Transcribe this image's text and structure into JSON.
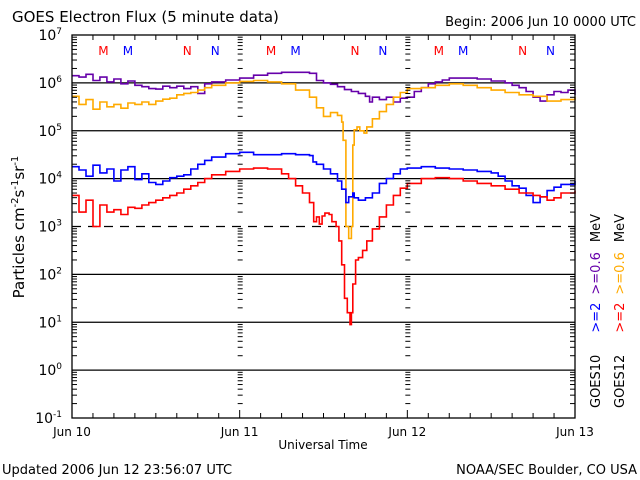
{
  "header": {
    "title": "GOES Electron Flux (5 minute data)",
    "begin": "Begin: 2006 Jun 10 0000 UTC"
  },
  "footer": {
    "updated": "Updated 2006 Jun 12 23:56:07 UTC",
    "credit": "NOAA/SEC Boulder, CO USA"
  },
  "colors": {
    "goes10_gt2": "#0000ff",
    "goes10_gt06": "#6600aa",
    "goes12_gt2": "#ff0000",
    "goes12_gt06": "#ffaa00",
    "axis": "#000000"
  },
  "chart_data": {
    "type": "line",
    "title": "GOES Electron Flux (5 minute data)",
    "xlabel": "Universal Time",
    "ylabel": "Particles cm⁻²s⁻¹sr⁻¹",
    "yscale": "log",
    "ylim": [
      0.1,
      10000000
    ],
    "xlim_hours": [
      0,
      72
    ],
    "x_ticks": [
      {
        "hour": 0,
        "label": "Jun 10"
      },
      {
        "hour": 24,
        "label": "Jun 11"
      },
      {
        "hour": 48,
        "label": "Jun 12"
      },
      {
        "hour": 72,
        "label": "Jun 13"
      }
    ],
    "y_ticks": [
      {
        "exp": 7,
        "base": "10",
        "sup": "7"
      },
      {
        "exp": 6,
        "base": "10",
        "sup": "6"
      },
      {
        "exp": 5,
        "base": "10",
        "sup": "5"
      },
      {
        "exp": 4,
        "base": "10",
        "sup": "4"
      },
      {
        "exp": 3,
        "base": "10",
        "sup": "3"
      },
      {
        "exp": 2,
        "base": "10",
        "sup": "2"
      },
      {
        "exp": 1,
        "base": "10",
        "sup": "1"
      },
      {
        "exp": 0,
        "base": "10",
        "sup": "0"
      },
      {
        "exp": -1,
        "base": "10",
        "sup": "-1"
      }
    ],
    "solid_gridlines_exp": [
      6,
      5,
      4,
      2,
      1,
      0
    ],
    "dashed_gridlines_exp": [
      3
    ],
    "day_boundaries_hours": [
      24,
      48
    ],
    "markers": [
      {
        "hour": 4.5,
        "label": "M",
        "satellite": "GOES12"
      },
      {
        "hour": 8.0,
        "label": "M",
        "satellite": "GOES10"
      },
      {
        "hour": 16.5,
        "label": "N",
        "satellite": "GOES12"
      },
      {
        "hour": 20.5,
        "label": "N",
        "satellite": "GOES10"
      },
      {
        "hour": 28.5,
        "label": "M",
        "satellite": "GOES12"
      },
      {
        "hour": 32.0,
        "label": "M",
        "satellite": "GOES10"
      },
      {
        "hour": 40.5,
        "label": "N",
        "satellite": "GOES12"
      },
      {
        "hour": 44.5,
        "label": "N",
        "satellite": "GOES10"
      },
      {
        "hour": 52.5,
        "label": "M",
        "satellite": "GOES12"
      },
      {
        "hour": 56.0,
        "label": "M",
        "satellite": "GOES10"
      },
      {
        "hour": 64.5,
        "label": "N",
        "satellite": "GOES12"
      },
      {
        "hour": 68.5,
        "label": "N",
        "satellite": "GOES10"
      }
    ],
    "legend": [
      {
        "satellite": "GOES10",
        "gt2": ">=2",
        "gt06": ">=0.6",
        "unit": "MeV"
      },
      {
        "satellite": "GOES12",
        "gt2": ">=2",
        "gt06": ">=0.6",
        "unit": "MeV"
      }
    ],
    "legend_placement": "right-vertical",
    "series": [
      {
        "name": "GOES10 >=0.6 MeV",
        "color_key": "goes10_gt06",
        "points": [
          [
            0,
            6.15
          ],
          [
            1,
            6.12
          ],
          [
            2,
            6.18
          ],
          [
            3,
            6.05
          ],
          [
            4,
            6.12
          ],
          [
            5,
            6.02
          ],
          [
            6,
            6.08
          ],
          [
            7,
            5.98
          ],
          [
            8,
            6.04
          ],
          [
            9,
            5.95
          ],
          [
            10,
            5.92
          ],
          [
            11,
            5.88
          ],
          [
            12,
            5.87
          ],
          [
            13,
            5.93
          ],
          [
            14,
            5.9
          ],
          [
            15,
            5.93
          ],
          [
            16,
            5.88
          ],
          [
            17,
            5.92
          ],
          [
            18,
            5.78
          ],
          [
            19,
            5.98
          ],
          [
            20,
            6.02
          ],
          [
            22,
            6.06
          ],
          [
            24,
            6.1
          ],
          [
            26,
            6.16
          ],
          [
            28,
            6.2
          ],
          [
            30,
            6.22
          ],
          [
            32,
            6.22
          ],
          [
            34,
            6.2
          ],
          [
            35,
            6.05
          ],
          [
            36,
            6.0
          ],
          [
            37,
            5.97
          ],
          [
            38,
            5.92
          ],
          [
            39,
            5.86
          ],
          [
            40,
            5.82
          ],
          [
            41,
            5.78
          ],
          [
            42,
            5.72
          ],
          [
            42.6,
            5.6
          ],
          [
            43,
            5.7
          ],
          [
            44,
            5.65
          ],
          [
            45,
            5.7
          ],
          [
            46,
            5.6
          ],
          [
            47,
            5.68
          ],
          [
            48,
            5.7
          ],
          [
            49,
            5.82
          ],
          [
            50,
            5.9
          ],
          [
            51,
            5.98
          ],
          [
            52,
            6.02
          ],
          [
            53,
            6.06
          ],
          [
            54,
            6.1
          ],
          [
            56,
            6.1
          ],
          [
            58,
            6.08
          ],
          [
            60,
            6.04
          ],
          [
            62,
            6.0
          ],
          [
            63,
            5.95
          ],
          [
            64,
            5.9
          ],
          [
            65,
            5.82
          ],
          [
            66,
            5.7
          ],
          [
            67,
            5.62
          ],
          [
            68,
            5.75
          ],
          [
            69,
            5.82
          ],
          [
            70,
            5.8
          ],
          [
            71,
            5.85
          ],
          [
            72,
            5.75
          ]
        ]
      },
      {
        "name": "GOES12 >=0.6 MeV",
        "color_key": "goes12_gt06",
        "points": [
          [
            0,
            5.72
          ],
          [
            1,
            5.55
          ],
          [
            2,
            5.65
          ],
          [
            3,
            5.45
          ],
          [
            4,
            5.6
          ],
          [
            5,
            5.5
          ],
          [
            6,
            5.55
          ],
          [
            7,
            5.47
          ],
          [
            8,
            5.58
          ],
          [
            9,
            5.55
          ],
          [
            10,
            5.6
          ],
          [
            11,
            5.55
          ],
          [
            12,
            5.62
          ],
          [
            13,
            5.66
          ],
          [
            14,
            5.68
          ],
          [
            15,
            5.75
          ],
          [
            16,
            5.78
          ],
          [
            17,
            5.8
          ],
          [
            18,
            5.85
          ],
          [
            19,
            5.9
          ],
          [
            20,
            5.95
          ],
          [
            22,
            6.0
          ],
          [
            24,
            6.03
          ],
          [
            26,
            6.05
          ],
          [
            28,
            6.02
          ],
          [
            30,
            5.98
          ],
          [
            32,
            5.85
          ],
          [
            34,
            5.7
          ],
          [
            35,
            5.48
          ],
          [
            36,
            5.3
          ],
          [
            37,
            5.38
          ],
          [
            38,
            5.32
          ],
          [
            38.6,
            5.18
          ],
          [
            38.8,
            4.8
          ],
          [
            39.2,
            3.0
          ],
          [
            39.6,
            2.75
          ],
          [
            40.0,
            3.0
          ],
          [
            40.2,
            4.7
          ],
          [
            40.4,
            5.02
          ],
          [
            40.8,
            5.08
          ],
          [
            41.2,
            5.0
          ],
          [
            41.8,
            4.95
          ],
          [
            42.2,
            5.08
          ],
          [
            43,
            5.25
          ],
          [
            44,
            5.4
          ],
          [
            45,
            5.55
          ],
          [
            46,
            5.7
          ],
          [
            47,
            5.8
          ],
          [
            48,
            5.88
          ],
          [
            50,
            5.9
          ],
          [
            52,
            5.95
          ],
          [
            54,
            5.98
          ],
          [
            56,
            5.95
          ],
          [
            58,
            5.9
          ],
          [
            60,
            5.85
          ],
          [
            62,
            5.8
          ],
          [
            64,
            5.75
          ],
          [
            66,
            5.72
          ],
          [
            68,
            5.62
          ],
          [
            69,
            5.62
          ],
          [
            70,
            5.65
          ],
          [
            72,
            5.7
          ]
        ]
      },
      {
        "name": "GOES10 >=2 MeV",
        "color_key": "goes10_gt2",
        "points": [
          [
            0,
            4.25
          ],
          [
            1,
            4.18
          ],
          [
            2,
            4.05
          ],
          [
            3,
            4.28
          ],
          [
            4,
            4.12
          ],
          [
            5,
            4.2
          ],
          [
            6,
            3.95
          ],
          [
            7,
            4.18
          ],
          [
            8,
            4.25
          ],
          [
            9,
            3.98
          ],
          [
            10,
            4.1
          ],
          [
            11,
            3.92
          ],
          [
            12,
            3.88
          ],
          [
            13,
            3.95
          ],
          [
            14,
            4.02
          ],
          [
            15,
            4.05
          ],
          [
            16,
            4.08
          ],
          [
            17,
            4.2
          ],
          [
            18,
            4.3
          ],
          [
            19,
            4.38
          ],
          [
            20,
            4.45
          ],
          [
            22,
            4.52
          ],
          [
            24,
            4.55
          ],
          [
            26,
            4.5
          ],
          [
            28,
            4.5
          ],
          [
            30,
            4.52
          ],
          [
            32,
            4.5
          ],
          [
            34,
            4.48
          ],
          [
            34.5,
            4.35
          ],
          [
            35,
            4.3
          ],
          [
            36,
            4.2
          ],
          [
            37,
            4.1
          ],
          [
            38,
            3.95
          ],
          [
            38.6,
            3.78
          ],
          [
            39.2,
            3.5
          ],
          [
            39.6,
            3.62
          ],
          [
            40.2,
            3.7
          ],
          [
            40.4,
            3.6
          ],
          [
            41,
            3.55
          ],
          [
            42,
            3.6
          ],
          [
            43,
            3.7
          ],
          [
            44,
            3.9
          ],
          [
            45,
            4.0
          ],
          [
            46,
            4.1
          ],
          [
            47,
            4.2
          ],
          [
            48,
            4.22
          ],
          [
            50,
            4.25
          ],
          [
            52,
            4.22
          ],
          [
            54,
            4.2
          ],
          [
            56,
            4.18
          ],
          [
            58,
            4.15
          ],
          [
            60,
            4.12
          ],
          [
            61,
            4.05
          ],
          [
            62,
            3.95
          ],
          [
            63,
            3.85
          ],
          [
            64,
            3.8
          ],
          [
            65,
            3.65
          ],
          [
            66,
            3.5
          ],
          [
            67,
            3.62
          ],
          [
            68,
            3.75
          ],
          [
            69,
            3.82
          ],
          [
            70,
            3.88
          ],
          [
            72,
            3.95
          ]
        ]
      },
      {
        "name": "GOES12 >=2 MeV",
        "color_key": "goes12_gt2",
        "points": [
          [
            0,
            3.65
          ],
          [
            1,
            3.3
          ],
          [
            2,
            3.55
          ],
          [
            3,
            3.0
          ],
          [
            4,
            3.45
          ],
          [
            5,
            3.3
          ],
          [
            6,
            3.35
          ],
          [
            7,
            3.25
          ],
          [
            8,
            3.4
          ],
          [
            9,
            3.38
          ],
          [
            10,
            3.45
          ],
          [
            11,
            3.5
          ],
          [
            12,
            3.55
          ],
          [
            13,
            3.6
          ],
          [
            14,
            3.65
          ],
          [
            15,
            3.7
          ],
          [
            16,
            3.78
          ],
          [
            17,
            3.85
          ],
          [
            18,
            3.92
          ],
          [
            19,
            4.0
          ],
          [
            20,
            4.08
          ],
          [
            22,
            4.15
          ],
          [
            24,
            4.2
          ],
          [
            26,
            4.22
          ],
          [
            28,
            4.2
          ],
          [
            30,
            4.1
          ],
          [
            31,
            4.0
          ],
          [
            32,
            3.85
          ],
          [
            33,
            3.7
          ],
          [
            34,
            3.5
          ],
          [
            34.6,
            3.1
          ],
          [
            35,
            3.2
          ],
          [
            35.4,
            3.05
          ],
          [
            35.8,
            3.22
          ],
          [
            36.2,
            3.28
          ],
          [
            36.8,
            3.25
          ],
          [
            37.2,
            3.1
          ],
          [
            37.8,
            3.0
          ],
          [
            38.2,
            2.7
          ],
          [
            38.6,
            2.2
          ],
          [
            39.0,
            1.5
          ],
          [
            39.4,
            1.2
          ],
          [
            39.8,
            0.95
          ],
          [
            40.0,
            1.2
          ],
          [
            40.2,
            1.8
          ],
          [
            40.6,
            2.3
          ],
          [
            41.0,
            2.35
          ],
          [
            41.6,
            2.5
          ],
          [
            42.2,
            2.7
          ],
          [
            43,
            2.95
          ],
          [
            44,
            3.2
          ],
          [
            45,
            3.45
          ],
          [
            46,
            3.65
          ],
          [
            47,
            3.8
          ],
          [
            48,
            3.9
          ],
          [
            50,
            4.0
          ],
          [
            52,
            4.02
          ],
          [
            54,
            4.0
          ],
          [
            56,
            3.95
          ],
          [
            58,
            3.9
          ],
          [
            60,
            3.85
          ],
          [
            62,
            3.78
          ],
          [
            64,
            3.7
          ],
          [
            66,
            3.65
          ],
          [
            67,
            3.62
          ],
          [
            68,
            3.55
          ],
          [
            69,
            3.6
          ],
          [
            70,
            3.7
          ],
          [
            72,
            3.75
          ]
        ]
      }
    ]
  }
}
